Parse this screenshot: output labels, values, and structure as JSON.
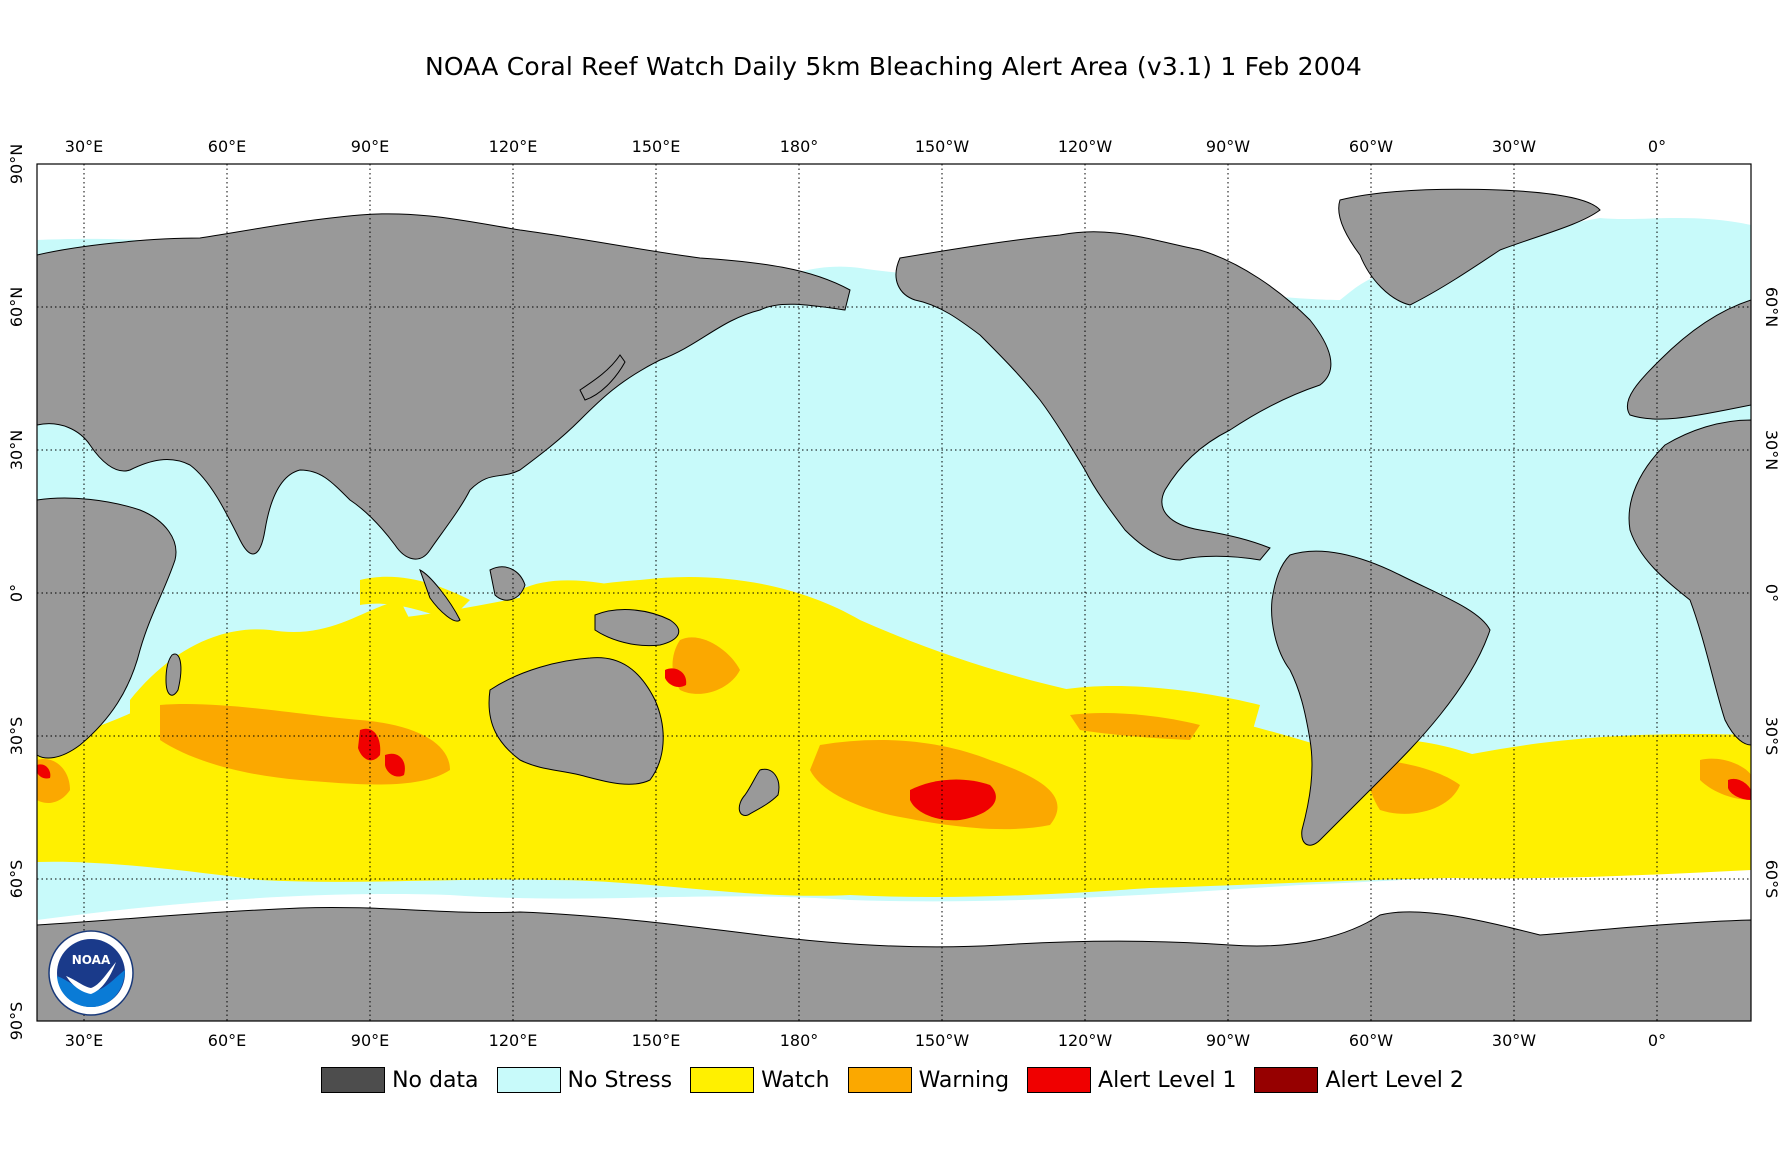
{
  "title": "NOAA Coral Reef Watch Daily 5km Bleaching Alert Area  (v3.1)   1 Feb 2004",
  "map": {
    "projection": "equirectangular, centered on 160°W (Pacific-centric)",
    "lon_ticks": [
      "30°E",
      "60°E",
      "90°E",
      "120°E",
      "150°E",
      "180°",
      "150°W",
      "120°W",
      "90°W",
      "60°W",
      "30°W",
      "0°"
    ],
    "lat_ticks_left": [
      "90°N",
      "60°N",
      "30°N",
      "0°",
      "30°S",
      "60°S",
      "90°S"
    ],
    "lat_ticks_right": [
      "60°N",
      "30°N",
      "0°",
      "30°S",
      "60°S"
    ],
    "colors": {
      "land": "#999999",
      "no_stress": "#c8fafa",
      "watch": "#fff000",
      "warning": "#fba800",
      "alert1": "#f00000",
      "alert2": "#960000",
      "no_data": "#4d4d4d",
      "ice": "#ffffff"
    }
  },
  "legend": [
    {
      "label": "No data",
      "color": "#4d4d4d"
    },
    {
      "label": "No Stress",
      "color": "#c8fafa"
    },
    {
      "label": "Watch",
      "color": "#fff000"
    },
    {
      "label": "Warning",
      "color": "#fba800"
    },
    {
      "label": "Alert Level 1",
      "color": "#f00000"
    },
    {
      "label": "Alert Level 2",
      "color": "#960000"
    }
  ],
  "logo": {
    "text": "NOAA"
  }
}
